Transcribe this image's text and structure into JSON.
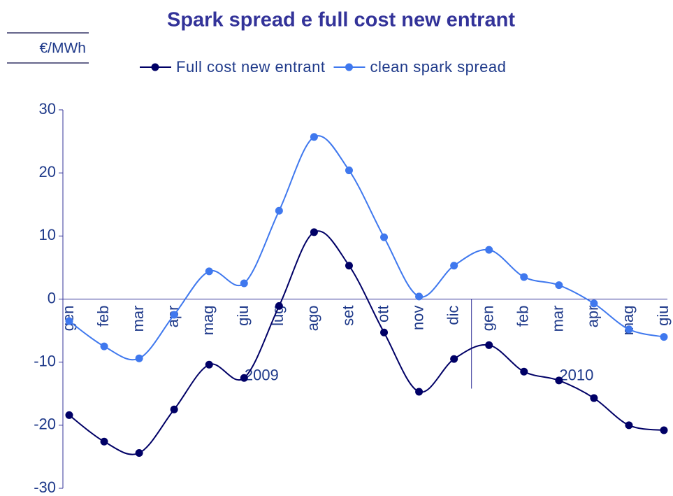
{
  "chart_data": {
    "type": "line",
    "title": "Spark spread e full cost new entrant",
    "unit_label": "€/MWh",
    "categories": [
      "gen",
      "feb",
      "mar",
      "apr",
      "mag",
      "giu",
      "lug",
      "ago",
      "set",
      "ott",
      "nov",
      "dic",
      "gen",
      "feb",
      "mar",
      "apr",
      "mag",
      "giu"
    ],
    "group_labels": [
      "2009",
      "2010"
    ],
    "series": [
      {
        "name": "Full cost new entrant",
        "color": "#000066",
        "values": [
          -18.4,
          -22.6,
          -24.4,
          -17.5,
          -10.4,
          -12.5,
          -1.1,
          10.6,
          5.3,
          -5.3,
          -14.7,
          -9.5,
          -7.3,
          -11.5,
          -12.9,
          -15.7,
          -20.0,
          -20.8
        ]
      },
      {
        "name": "clean spark spread",
        "color": "#3f78ee",
        "values": [
          -3.5,
          -7.5,
          -9.4,
          -2.5,
          4.4,
          2.5,
          14.0,
          25.7,
          20.4,
          9.8,
          0.4,
          5.3,
          7.8,
          3.5,
          2.2,
          -0.7,
          -4.8,
          -6.0
        ]
      }
    ],
    "ylim": [
      -30,
      30
    ],
    "yticks": [
      -30,
      -20,
      -10,
      0,
      10,
      20,
      30
    ],
    "smooth": true
  }
}
